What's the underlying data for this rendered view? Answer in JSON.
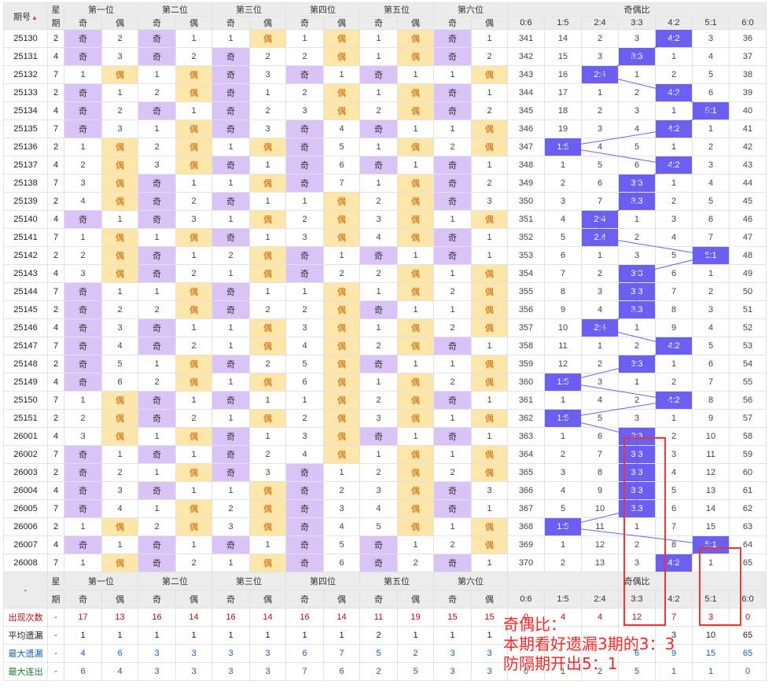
{
  "header": {
    "period_label": "期号",
    "week_label_top": "星",
    "week_label_bottom": "期",
    "positions": [
      "第一位",
      "第二位",
      "第三位",
      "第四位",
      "第五位",
      "第六位"
    ],
    "odd_label": "奇",
    "even_label": "偶",
    "ratio_group_label": "奇偶比",
    "ratios": [
      "0:6",
      "1:5",
      "2:4",
      "3:3",
      "4:2",
      "5:1",
      "6:0"
    ]
  },
  "rows": [
    {
      "p": "25130",
      "w": "2",
      "pos": [
        [
          "o",
          "2"
        ],
        [
          "o",
          "1"
        ],
        [
          "e",
          "1"
        ],
        [
          "e",
          "1"
        ],
        [
          "e",
          "1"
        ],
        [
          "o",
          "1"
        ]
      ],
      "r": [
        "341",
        "14",
        "2",
        "3",
        "4:2",
        "3",
        "36"
      ],
      "hit": 4
    },
    {
      "p": "25131",
      "w": "4",
      "pos": [
        [
          "o",
          "3"
        ],
        [
          "o",
          "2"
        ],
        [
          "o",
          "2"
        ],
        [
          "e",
          "2"
        ],
        [
          "e",
          "1"
        ],
        [
          "o",
          "2"
        ]
      ],
      "r": [
        "342",
        "15",
        "3",
        "3:3",
        "1",
        "4",
        "37"
      ],
      "hit": 3
    },
    {
      "p": "25132",
      "w": "7",
      "pos": [
        [
          "e",
          "1"
        ],
        [
          "e",
          "1"
        ],
        [
          "o",
          "3"
        ],
        [
          "o",
          "1"
        ],
        [
          "o",
          "1"
        ],
        [
          "e",
          "1"
        ]
      ],
      "r": [
        "343",
        "16",
        "2:4",
        "1",
        "2",
        "5",
        "38"
      ],
      "hit": 2
    },
    {
      "p": "25133",
      "w": "2",
      "pos": [
        [
          "o",
          "1"
        ],
        [
          "e",
          "2"
        ],
        [
          "o",
          "1"
        ],
        [
          "e",
          "2"
        ],
        [
          "e",
          "1"
        ],
        [
          "o",
          "1"
        ]
      ],
      "r": [
        "344",
        "17",
        "1",
        "2",
        "4:2",
        "6",
        "39"
      ],
      "hit": 4
    },
    {
      "p": "25134",
      "w": "4",
      "pos": [
        [
          "o",
          "2"
        ],
        [
          "o",
          "1"
        ],
        [
          "o",
          "2"
        ],
        [
          "e",
          "3"
        ],
        [
          "e",
          "2"
        ],
        [
          "o",
          "2"
        ]
      ],
      "r": [
        "345",
        "18",
        "2",
        "3",
        "1",
        "5:1",
        "40"
      ],
      "hit": 5,
      "grp": 1
    },
    {
      "p": "25135",
      "w": "7",
      "pos": [
        [
          "o",
          "3"
        ],
        [
          "e",
          "1"
        ],
        [
          "o",
          "3"
        ],
        [
          "o",
          "4"
        ],
        [
          "o",
          "1"
        ],
        [
          "e",
          "1"
        ]
      ],
      "r": [
        "346",
        "19",
        "3",
        "4",
        "4:2",
        "1",
        "41"
      ],
      "hit": 4
    },
    {
      "p": "25136",
      "w": "2",
      "pos": [
        [
          "e",
          "1"
        ],
        [
          "e",
          "2"
        ],
        [
          "e",
          "1"
        ],
        [
          "o",
          "5"
        ],
        [
          "e",
          "1"
        ],
        [
          "e",
          "2"
        ]
      ],
      "r": [
        "347",
        "1:5",
        "4",
        "5",
        "1",
        "2",
        "42"
      ],
      "hit": 1
    },
    {
      "p": "25137",
      "w": "4",
      "pos": [
        [
          "e",
          "2"
        ],
        [
          "e",
          "3"
        ],
        [
          "o",
          "1"
        ],
        [
          "o",
          "6"
        ],
        [
          "o",
          "1"
        ],
        [
          "o",
          "1"
        ]
      ],
      "r": [
        "348",
        "1",
        "5",
        "6",
        "4:2",
        "3",
        "43"
      ],
      "hit": 4
    },
    {
      "p": "25138",
      "w": "7",
      "pos": [
        [
          "e",
          "3"
        ],
        [
          "o",
          "1"
        ],
        [
          "e",
          "1"
        ],
        [
          "o",
          "7"
        ],
        [
          "e",
          "1"
        ],
        [
          "o",
          "2"
        ]
      ],
      "r": [
        "349",
        "2",
        "6",
        "3:3",
        "1",
        "4",
        "44"
      ],
      "hit": 3
    },
    {
      "p": "25139",
      "w": "2",
      "pos": [
        [
          "e",
          "4"
        ],
        [
          "o",
          "2"
        ],
        [
          "o",
          "1"
        ],
        [
          "e",
          "1"
        ],
        [
          "e",
          "2"
        ],
        [
          "o",
          "3"
        ]
      ],
      "r": [
        "350",
        "3",
        "7",
        "3:3",
        "2",
        "5",
        "45"
      ],
      "hit": 3,
      "grp": 1
    },
    {
      "p": "25140",
      "w": "4",
      "pos": [
        [
          "o",
          "1"
        ],
        [
          "o",
          "3"
        ],
        [
          "e",
          "1"
        ],
        [
          "e",
          "2"
        ],
        [
          "e",
          "3"
        ],
        [
          "e",
          "1"
        ]
      ],
      "r": [
        "351",
        "4",
        "2:4",
        "1",
        "3",
        "6",
        "46"
      ],
      "hit": 2
    },
    {
      "p": "25141",
      "w": "7",
      "pos": [
        [
          "e",
          "1"
        ],
        [
          "e",
          "1"
        ],
        [
          "o",
          "1"
        ],
        [
          "e",
          "3"
        ],
        [
          "e",
          "4"
        ],
        [
          "o",
          "1"
        ]
      ],
      "r": [
        "352",
        "5",
        "2:4",
        "2",
        "4",
        "7",
        "47"
      ],
      "hit": 2
    },
    {
      "p": "25142",
      "w": "2",
      "pos": [
        [
          "e",
          "2"
        ],
        [
          "o",
          "1"
        ],
        [
          "e",
          "2"
        ],
        [
          "o",
          "1"
        ],
        [
          "o",
          "1"
        ],
        [
          "o",
          "1"
        ]
      ],
      "r": [
        "353",
        "6",
        "1",
        "3",
        "5",
        "5:1",
        "48"
      ],
      "hit": 5
    },
    {
      "p": "25143",
      "w": "4",
      "pos": [
        [
          "e",
          "3"
        ],
        [
          "o",
          "2"
        ],
        [
          "e",
          "1"
        ],
        [
          "o",
          "2"
        ],
        [
          "e",
          "2"
        ],
        [
          "e",
          "1"
        ]
      ],
      "r": [
        "354",
        "7",
        "2",
        "3:3",
        "6",
        "1",
        "49"
      ],
      "hit": 3
    },
    {
      "p": "25144",
      "w": "7",
      "pos": [
        [
          "o",
          "1"
        ],
        [
          "e",
          "1"
        ],
        [
          "o",
          "1"
        ],
        [
          "e",
          "1"
        ],
        [
          "e",
          "1"
        ],
        [
          "e",
          "2"
        ]
      ],
      "r": [
        "355",
        "8",
        "3",
        "3:3",
        "7",
        "2",
        "50"
      ],
      "hit": 3,
      "grp": 1
    },
    {
      "p": "25145",
      "w": "2",
      "pos": [
        [
          "o",
          "2"
        ],
        [
          "e",
          "2"
        ],
        [
          "o",
          "2"
        ],
        [
          "e",
          "2"
        ],
        [
          "o",
          "1"
        ],
        [
          "e",
          "1"
        ]
      ],
      "r": [
        "356",
        "9",
        "4",
        "3:3",
        "8",
        "3",
        "51"
      ],
      "hit": 3
    },
    {
      "p": "25146",
      "w": "4",
      "pos": [
        [
          "o",
          "3"
        ],
        [
          "o",
          "1"
        ],
        [
          "e",
          "1"
        ],
        [
          "e",
          "3"
        ],
        [
          "e",
          "1"
        ],
        [
          "e",
          "2"
        ]
      ],
      "r": [
        "357",
        "10",
        "2:4",
        "1",
        "9",
        "4",
        "52"
      ],
      "hit": 2
    },
    {
      "p": "25147",
      "w": "7",
      "pos": [
        [
          "o",
          "4"
        ],
        [
          "o",
          "2"
        ],
        [
          "e",
          "1"
        ],
        [
          "e",
          "4"
        ],
        [
          "e",
          "2"
        ],
        [
          "o",
          "1"
        ]
      ],
      "r": [
        "358",
        "11",
        "1",
        "2",
        "4:2",
        "5",
        "53"
      ],
      "hit": 4
    },
    {
      "p": "25148",
      "w": "2",
      "pos": [
        [
          "o",
          "5"
        ],
        [
          "e",
          "1"
        ],
        [
          "o",
          "2"
        ],
        [
          "e",
          "5"
        ],
        [
          "o",
          "1"
        ],
        [
          "e",
          "1"
        ]
      ],
      "r": [
        "359",
        "12",
        "2",
        "3:3",
        "1",
        "6",
        "54"
      ],
      "hit": 3
    },
    {
      "p": "25149",
      "w": "4",
      "pos": [
        [
          "o",
          "6"
        ],
        [
          "e",
          "2"
        ],
        [
          "e",
          "1"
        ],
        [
          "e",
          "6"
        ],
        [
          "e",
          "1"
        ],
        [
          "e",
          "2"
        ]
      ],
      "r": [
        "360",
        "1:5",
        "3",
        "1",
        "2",
        "7",
        "55"
      ],
      "hit": 1,
      "grp": 1
    },
    {
      "p": "25150",
      "w": "7",
      "pos": [
        [
          "e",
          "1"
        ],
        [
          "o",
          "1"
        ],
        [
          "o",
          "1"
        ],
        [
          "e",
          "1"
        ],
        [
          "e",
          "2"
        ],
        [
          "o",
          "1"
        ]
      ],
      "r": [
        "361",
        "1",
        "4",
        "2",
        "4:2",
        "8",
        "56"
      ],
      "hit": 4
    },
    {
      "p": "25151",
      "w": "2",
      "pos": [
        [
          "e",
          "2"
        ],
        [
          "o",
          "2"
        ],
        [
          "e",
          "1"
        ],
        [
          "e",
          "2"
        ],
        [
          "e",
          "3"
        ],
        [
          "e",
          "1"
        ]
      ],
      "r": [
        "362",
        "1:5",
        "5",
        "3",
        "1",
        "9",
        "57"
      ],
      "hit": 1
    },
    {
      "p": "26001",
      "w": "4",
      "pos": [
        [
          "e",
          "3"
        ],
        [
          "e",
          "1"
        ],
        [
          "o",
          "1"
        ],
        [
          "e",
          "3"
        ],
        [
          "o",
          "1"
        ],
        [
          "o",
          "1"
        ]
      ],
      "r": [
        "363",
        "1",
        "6",
        "3:3",
        "2",
        "10",
        "58"
      ],
      "hit": 3
    },
    {
      "p": "26002",
      "w": "7",
      "pos": [
        [
          "o",
          "1"
        ],
        [
          "o",
          "1"
        ],
        [
          "o",
          "2"
        ],
        [
          "e",
          "4"
        ],
        [
          "e",
          "1"
        ],
        [
          "e",
          "1"
        ]
      ],
      "r": [
        "364",
        "2",
        "7",
        "3:3",
        "3",
        "11",
        "59"
      ],
      "hit": 3
    },
    {
      "p": "26003",
      "w": "2",
      "pos": [
        [
          "o",
          "2"
        ],
        [
          "e",
          "1"
        ],
        [
          "o",
          "3"
        ],
        [
          "o",
          "1"
        ],
        [
          "e",
          "2"
        ],
        [
          "e",
          "2"
        ]
      ],
      "r": [
        "365",
        "3",
        "8",
        "3:3",
        "4",
        "12",
        "60"
      ],
      "hit": 3,
      "grp": 1
    },
    {
      "p": "26004",
      "w": "4",
      "pos": [
        [
          "o",
          "3"
        ],
        [
          "o",
          "1"
        ],
        [
          "e",
          "1"
        ],
        [
          "o",
          "2"
        ],
        [
          "e",
          "3"
        ],
        [
          "o",
          "3"
        ]
      ],
      "r": [
        "366",
        "4",
        "9",
        "3:3",
        "5",
        "13",
        "61"
      ],
      "hit": 3
    },
    {
      "p": "26005",
      "w": "7",
      "pos": [
        [
          "o",
          "4"
        ],
        [
          "e",
          "1"
        ],
        [
          "e",
          "2"
        ],
        [
          "o",
          "3"
        ],
        [
          "e",
          "4"
        ],
        [
          "o",
          "1"
        ]
      ],
      "r": [
        "367",
        "5",
        "10",
        "3:3",
        "6",
        "14",
        "62"
      ],
      "hit": 3
    },
    {
      "p": "26006",
      "w": "2",
      "pos": [
        [
          "e",
          "1"
        ],
        [
          "e",
          "2"
        ],
        [
          "e",
          "3"
        ],
        [
          "o",
          "4"
        ],
        [
          "e",
          "5"
        ],
        [
          "e",
          "1"
        ]
      ],
      "r": [
        "368",
        "1:5",
        "11",
        "1",
        "7",
        "15",
        "63"
      ],
      "hit": 1
    },
    {
      "p": "26007",
      "w": "4",
      "pos": [
        [
          "o",
          "1"
        ],
        [
          "o",
          "1"
        ],
        [
          "o",
          "1"
        ],
        [
          "o",
          "5"
        ],
        [
          "o",
          "1"
        ],
        [
          "e",
          "2"
        ]
      ],
      "r": [
        "369",
        "1",
        "12",
        "2",
        "8",
        "5:1",
        "64"
      ],
      "hit": 5
    },
    {
      "p": "26008",
      "w": "7",
      "pos": [
        [
          "e",
          "1"
        ],
        [
          "o",
          "2"
        ],
        [
          "e",
          "1"
        ],
        [
          "o",
          "6"
        ],
        [
          "o",
          "2"
        ],
        [
          "o",
          "1"
        ]
      ],
      "r": [
        "370",
        "2",
        "13",
        "3",
        "4:2",
        "1",
        "65"
      ],
      "hit": 4,
      "grp": 1
    }
  ],
  "footer": {
    "dash": "-",
    "week_label_top": "星",
    "week_label_bottom": "期",
    "stats": [
      {
        "label": "出现次数",
        "dash": "-",
        "vals": [
          "17",
          "13",
          "16",
          "14",
          "16",
          "14",
          "16",
          "14",
          "11",
          "19",
          "15",
          "15",
          "0",
          "4",
          "4",
          "12",
          "7",
          "3",
          "0"
        ]
      },
      {
        "label": "平均遗漏",
        "dash": "-",
        "vals": [
          "1",
          "1",
          "1",
          "1",
          "1",
          "1",
          "1",
          "1",
          "2",
          "1",
          "1",
          "1",
          "",
          "",
          "",
          "",
          "3",
          "10",
          "65"
        ]
      },
      {
        "label": "最大遗漏",
        "dash": "-",
        "vals": [
          "4",
          "6",
          "3",
          "3",
          "3",
          "3",
          "6",
          "7",
          "5",
          "2",
          "3",
          "3",
          "",
          "",
          "",
          "6",
          "9",
          "15",
          "65"
        ]
      },
      {
        "label": "最大连出",
        "dash": "-",
        "vals": [
          "6",
          "4",
          "3",
          "3",
          "3",
          "3",
          "7",
          "6",
          "2",
          "5",
          "3",
          "3",
          "0",
          "1",
          "2",
          "5",
          "1",
          "1",
          "0"
        ]
      }
    ]
  },
  "annotation": {
    "title": "奇偶比：",
    "line1": "本期看好遗漏3期的3：3",
    "line2": "防隔期开出5：1"
  },
  "colors": {
    "odd_hit": "#d9c3f7",
    "even_hit": "#fde6a8",
    "ratio_hit": "#6a5ff0",
    "note_red": "#ee2a2a"
  }
}
